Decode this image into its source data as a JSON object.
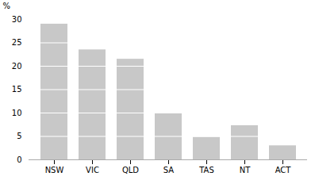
{
  "chart_data": {
    "type": "bar",
    "categories": [
      "NSW",
      "VIC",
      "QLD",
      "SA",
      "TAS",
      "NT",
      "ACT"
    ],
    "values": [
      29.0,
      23.5,
      21.5,
      10.0,
      4.8,
      7.3,
      3.0
    ],
    "color": "#c8c8c8",
    "ylabel": "%",
    "ylim": [
      0,
      30
    ],
    "yticks": [
      0,
      5,
      10,
      15,
      20,
      25,
      30
    ],
    "grid": true
  }
}
